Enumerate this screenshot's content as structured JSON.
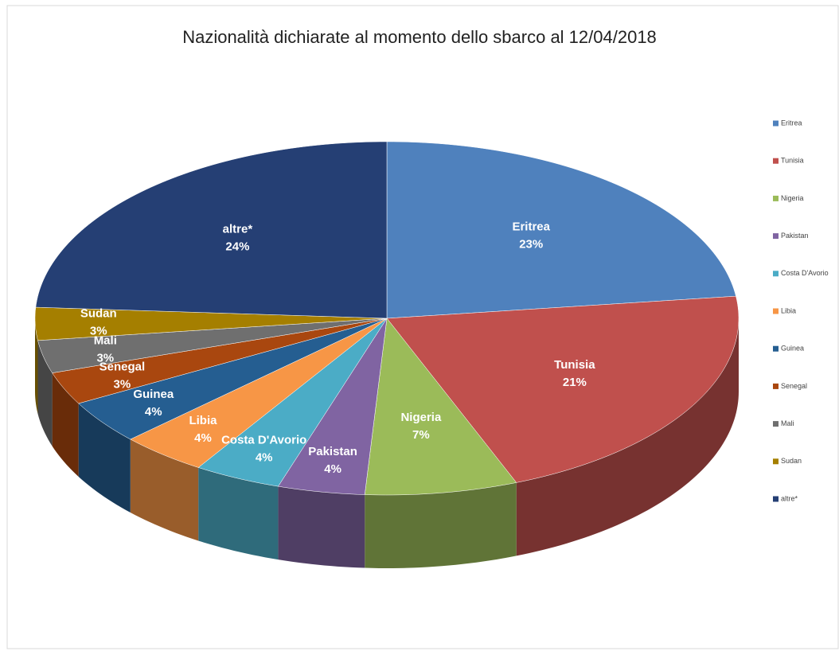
{
  "chart_data": {
    "type": "pie3d",
    "title": "Nazionalità dichiarate al momento dello sbarco al 12/04/2018",
    "categories": [
      "Eritrea",
      "Tunisia",
      "Nigeria",
      "Pakistan",
      "Costa D'Avorio",
      "Libia",
      "Guinea",
      "Senegal",
      "Mali",
      "Sudan",
      "altre*"
    ],
    "values": [
      23,
      21,
      7,
      4,
      4,
      4,
      4,
      3,
      3,
      3,
      24
    ],
    "value_labels": [
      "23%",
      "21%",
      "7%",
      "4%",
      "4%",
      "4%",
      "4%",
      "3%",
      "3%",
      "3%",
      "24%"
    ],
    "colors": [
      "#4f81bd",
      "#c0504d",
      "#9bbb59",
      "#8064a2",
      "#4bacc6",
      "#f79646",
      "#255e91",
      "#a9470f",
      "#6f6f6f",
      "#a57f00",
      "#253f74"
    ],
    "legend": "right"
  }
}
